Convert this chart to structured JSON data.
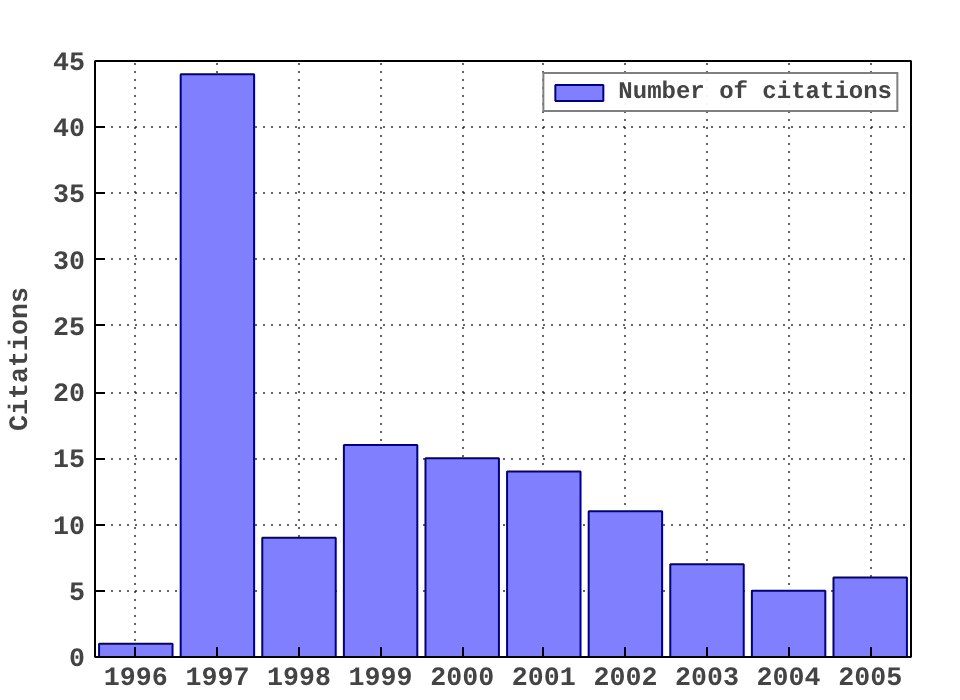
{
  "chart_data": {
    "type": "bar",
    "ylabel": "Citations",
    "x": [
      1996,
      1997,
      1998,
      1999,
      2000,
      2001,
      2002,
      2003,
      2004,
      2005
    ],
    "series": [
      {
        "name": "Number of citations",
        "color": "#8080ff",
        "values": [
          1,
          44,
          9,
          16,
          15,
          14,
          11,
          7,
          5,
          6
        ]
      }
    ],
    "xlim": [
      1995.5,
      2005.5
    ],
    "xticks": [
      1996,
      1997,
      1998,
      1999,
      2000,
      2001,
      2002,
      2003,
      2004,
      2005
    ],
    "ylim": [
      0,
      45
    ],
    "yticks": [
      0,
      5,
      10,
      15,
      20,
      25,
      30,
      35,
      40,
      45
    ],
    "grid": true,
    "legend": "top right"
  }
}
